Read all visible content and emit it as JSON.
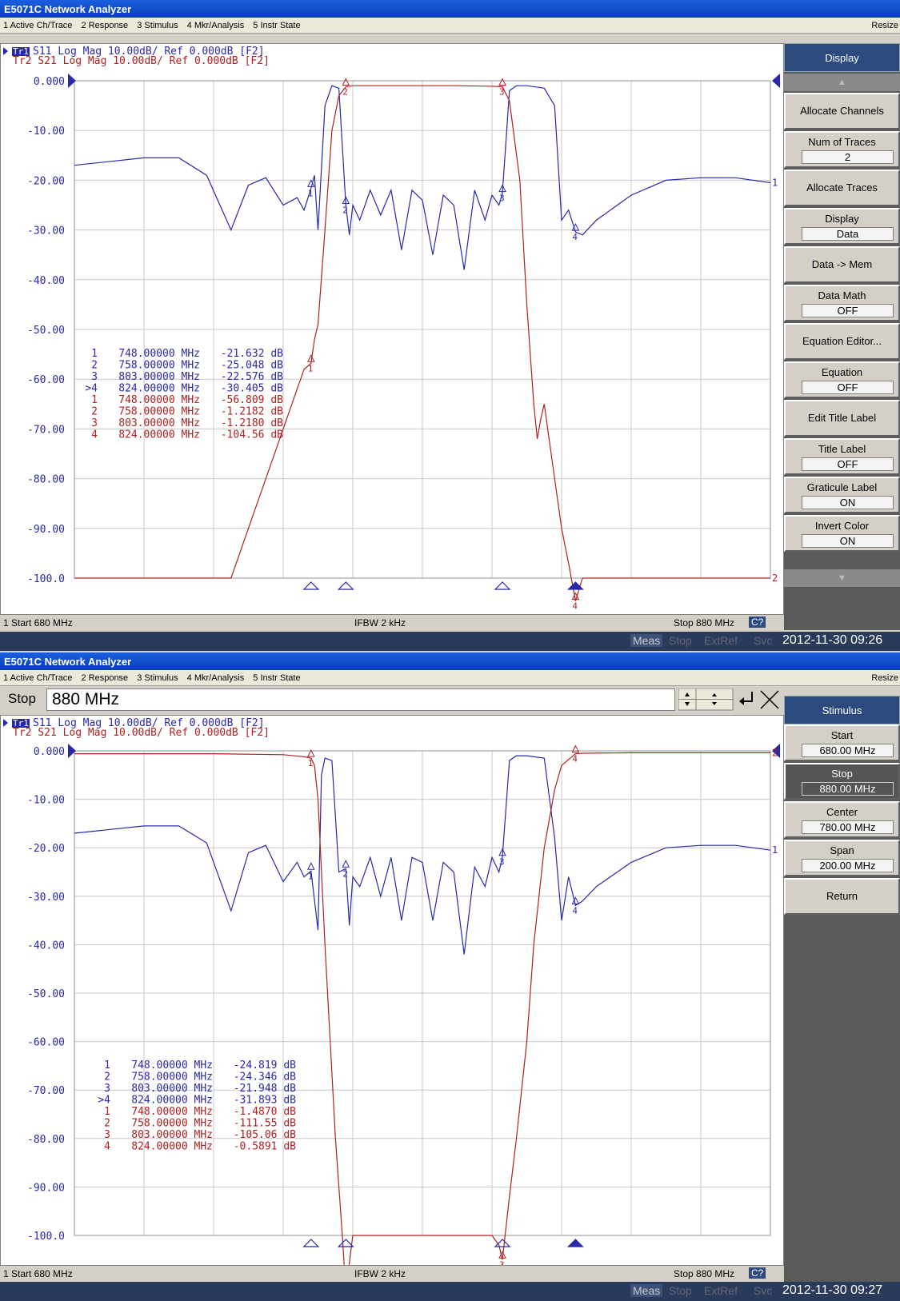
{
  "app_title": "E5071C Network Analyzer",
  "menu": [
    "1 Active Ch/Trace",
    "2 Response",
    "3 Stimulus",
    "4 Mkr/Analysis",
    "5 Instr State"
  ],
  "resize_label": "Resize",
  "trace_header": {
    "tr1_tag": "Tr1",
    "tr1": "S11 Log Mag 10.00dB/ Ref 0.000dB [F2]",
    "tr2": "Tr2 S21 Log Mag 10.00dB/ Ref 0.000dB [F2]"
  },
  "y_ticks": [
    "0.000",
    "-10.00",
    "-20.00",
    "-30.00",
    "-40.00",
    "-50.00",
    "-60.00",
    "-70.00",
    "-80.00",
    "-90.00",
    "-100.0"
  ],
  "colors": {
    "s11": "#2828a8",
    "s21": "#b02020",
    "grid": "#c8c8c8"
  },
  "top": {
    "status_left": "1 Start 680 MHz",
    "status_mid": "IFBW 2 kHz",
    "status_right": "Stop 880 MHz",
    "status_badge": "C?",
    "instr_meas": "Meas",
    "instr_items": [
      "Stop",
      "ExtRef",
      "Svc"
    ],
    "timestamp": "2012-11-30 09:26",
    "markers_s11": [
      {
        "n": "1",
        "freq": "748.00000 MHz",
        "val": "-21.632 dB"
      },
      {
        "n": "2",
        "freq": "758.00000 MHz",
        "val": "-25.048 dB"
      },
      {
        "n": "3",
        "freq": "803.00000 MHz",
        "val": "-22.576 dB"
      },
      {
        "n": ">4",
        "freq": "824.00000 MHz",
        "val": "-30.405 dB"
      }
    ],
    "markers_s21": [
      {
        "n": "1",
        "freq": "748.00000 MHz",
        "val": "-56.809 dB"
      },
      {
        "n": "2",
        "freq": "758.00000 MHz",
        "val": "-1.2182 dB"
      },
      {
        "n": "3",
        "freq": "803.00000 MHz",
        "val": "-1.2180 dB"
      },
      {
        "n": "4",
        "freq": "824.00000 MHz",
        "val": "-104.56 dB"
      }
    ],
    "softkey_title": "Display",
    "softkeys": [
      {
        "label": "Allocate Channels",
        "value": null
      },
      {
        "label": "Num of Traces",
        "value": "2"
      },
      {
        "label": "Allocate Traces",
        "value": null
      },
      {
        "label": "Display",
        "value": "Data"
      },
      {
        "label": "Data -> Mem",
        "value": null
      },
      {
        "label": "Data Math",
        "value": "OFF"
      },
      {
        "label": "Equation Editor...",
        "value": null
      },
      {
        "label": "Equation",
        "value": "OFF"
      },
      {
        "label": "Edit Title Label",
        "value": null
      },
      {
        "label": "Title Label",
        "value": "OFF"
      },
      {
        "label": "Graticule Label",
        "value": "ON"
      },
      {
        "label": "Invert Color",
        "value": "ON"
      }
    ]
  },
  "bottom": {
    "entry_label": "Stop",
    "entry_value": "880 MHz",
    "status_left": "1 Start 680 MHz",
    "status_mid": "IFBW 2 kHz",
    "status_right": "Stop 880 MHz",
    "status_badge": "C?",
    "instr_meas": "Meas",
    "instr_items": [
      "Stop",
      "ExtRef",
      "Svc"
    ],
    "timestamp": "2012-11-30 09:27",
    "markers_s11": [
      {
        "n": "1",
        "freq": "748.00000 MHz",
        "val": "-24.819 dB"
      },
      {
        "n": "2",
        "freq": "758.00000 MHz",
        "val": "-24.346 dB"
      },
      {
        "n": "3",
        "freq": "803.00000 MHz",
        "val": "-21.948 dB"
      },
      {
        "n": ">4",
        "freq": "824.00000 MHz",
        "val": "-31.893 dB"
      }
    ],
    "markers_s21": [
      {
        "n": "1",
        "freq": "748.00000 MHz",
        "val": "-1.4870 dB"
      },
      {
        "n": "2",
        "freq": "758.00000 MHz",
        "val": "-111.55 dB"
      },
      {
        "n": "3",
        "freq": "803.00000 MHz",
        "val": "-105.06 dB"
      },
      {
        "n": "4",
        "freq": "824.00000 MHz",
        "val": "-0.5891 dB"
      }
    ],
    "softkey_title": "Stimulus",
    "softkeys": [
      {
        "label": "Start",
        "value": "680.00 MHz"
      },
      {
        "label": "Stop",
        "value": "880.00 MHz",
        "selected": true
      },
      {
        "label": "Center",
        "value": "780.00 MHz"
      },
      {
        "label": "Span",
        "value": "200.00 MHz"
      },
      {
        "label": "Return",
        "value": null
      }
    ]
  },
  "chart_data": [
    {
      "type": "line",
      "x_unit": "MHz",
      "y_unit": "dB",
      "xlim": [
        680,
        880
      ],
      "ylim": [
        -100,
        0
      ],
      "grid": true,
      "series": [
        {
          "name": "S11",
          "x": [
            680,
            700,
            710,
            718,
            725,
            730,
            735,
            740,
            744,
            746,
            748,
            749,
            750,
            752,
            754,
            756,
            758,
            759,
            760,
            762,
            765,
            768,
            771,
            774,
            777,
            780,
            783,
            786,
            789,
            792,
            795,
            798,
            800,
            802,
            803,
            805,
            807,
            810,
            815,
            818,
            820,
            822,
            824,
            826,
            830,
            840,
            850,
            860,
            870,
            880
          ],
          "y": [
            -17,
            -15.5,
            -15.5,
            -19,
            -30,
            -21,
            -19.5,
            -25,
            -23.5,
            -26,
            -21.6,
            -19,
            -30,
            -5,
            -1,
            -1.5,
            -25,
            -31,
            -25,
            -28,
            -22,
            -27,
            -22,
            -34,
            -22,
            -24,
            -35,
            -23,
            -25,
            -38,
            -22,
            -28,
            -23,
            -25,
            -22.6,
            -2,
            -1,
            -1,
            -1.5,
            -5,
            -28,
            -26,
            -30.4,
            -31,
            -28,
            -23,
            -20,
            -19.5,
            -19.5,
            -20.5
          ]
        },
        {
          "name": "S21",
          "x": [
            680,
            720,
            725,
            730,
            735,
            740,
            744,
            746,
            748,
            749,
            750,
            752,
            754,
            756,
            758,
            760,
            770,
            790,
            800,
            803,
            805,
            808,
            810,
            812,
            813,
            814,
            815,
            818,
            820,
            822,
            824,
            826,
            880
          ],
          "y": [
            -100,
            -100,
            -100,
            -90,
            -80,
            -70,
            -62,
            -58,
            -56.8,
            -52,
            -49,
            -30,
            -10,
            -3,
            -1.2,
            -1,
            -1,
            -1,
            -1.1,
            -1.2,
            -4,
            -20,
            -45,
            -65,
            -72,
            -68,
            -65,
            -80,
            -90,
            -97,
            -104.6,
            -100,
            -100
          ]
        }
      ],
      "markers_x": [
        748,
        758,
        803,
        824
      ]
    },
    {
      "type": "line",
      "x_unit": "MHz",
      "y_unit": "dB",
      "xlim": [
        680,
        880
      ],
      "ylim": [
        -100,
        0
      ],
      "grid": true,
      "series": [
        {
          "name": "S11",
          "x": [
            680,
            700,
            710,
            718,
            725,
            730,
            735,
            740,
            744,
            746,
            748,
            750,
            751,
            752,
            754,
            756,
            758,
            759,
            760,
            762,
            765,
            768,
            771,
            774,
            777,
            780,
            783,
            786,
            789,
            792,
            795,
            798,
            800,
            802,
            803,
            805,
            807,
            810,
            815,
            818,
            820,
            822,
            824,
            826,
            830,
            840,
            850,
            860,
            870,
            880
          ],
          "y": [
            -17,
            -15.5,
            -15.5,
            -19,
            -33,
            -21,
            -19.5,
            -27,
            -23,
            -26,
            -24.8,
            -37,
            -5,
            -1.5,
            -2,
            -25,
            -24.3,
            -36,
            -26,
            -28,
            -22,
            -30,
            -22,
            -35,
            -22,
            -23,
            -35,
            -23,
            -25,
            -42,
            -24,
            -28,
            -22,
            -25,
            -21.9,
            -2,
            -1,
            -1,
            -1.5,
            -18,
            -35,
            -26,
            -31.9,
            -31,
            -28,
            -23,
            -20,
            -19.5,
            -19.5,
            -20.5
          ]
        },
        {
          "name": "S21",
          "x": [
            680,
            720,
            740,
            746,
            748,
            749,
            750,
            752,
            755,
            757,
            758,
            760,
            790,
            800,
            802,
            803,
            805,
            807,
            810,
            812,
            815,
            818,
            820,
            824,
            826,
            840,
            880
          ],
          "y": [
            -0.6,
            -0.6,
            -0.8,
            -1.2,
            -1.5,
            -3,
            -10,
            -40,
            -80,
            -100,
            -111.5,
            -100,
            -100,
            -100,
            -102,
            -105,
            -92,
            -80,
            -60,
            -40,
            -20,
            -8,
            -3,
            -0.6,
            -0.5,
            -0.4,
            -0.4
          ]
        }
      ],
      "markers_x": [
        748,
        758,
        803,
        824
      ]
    }
  ]
}
